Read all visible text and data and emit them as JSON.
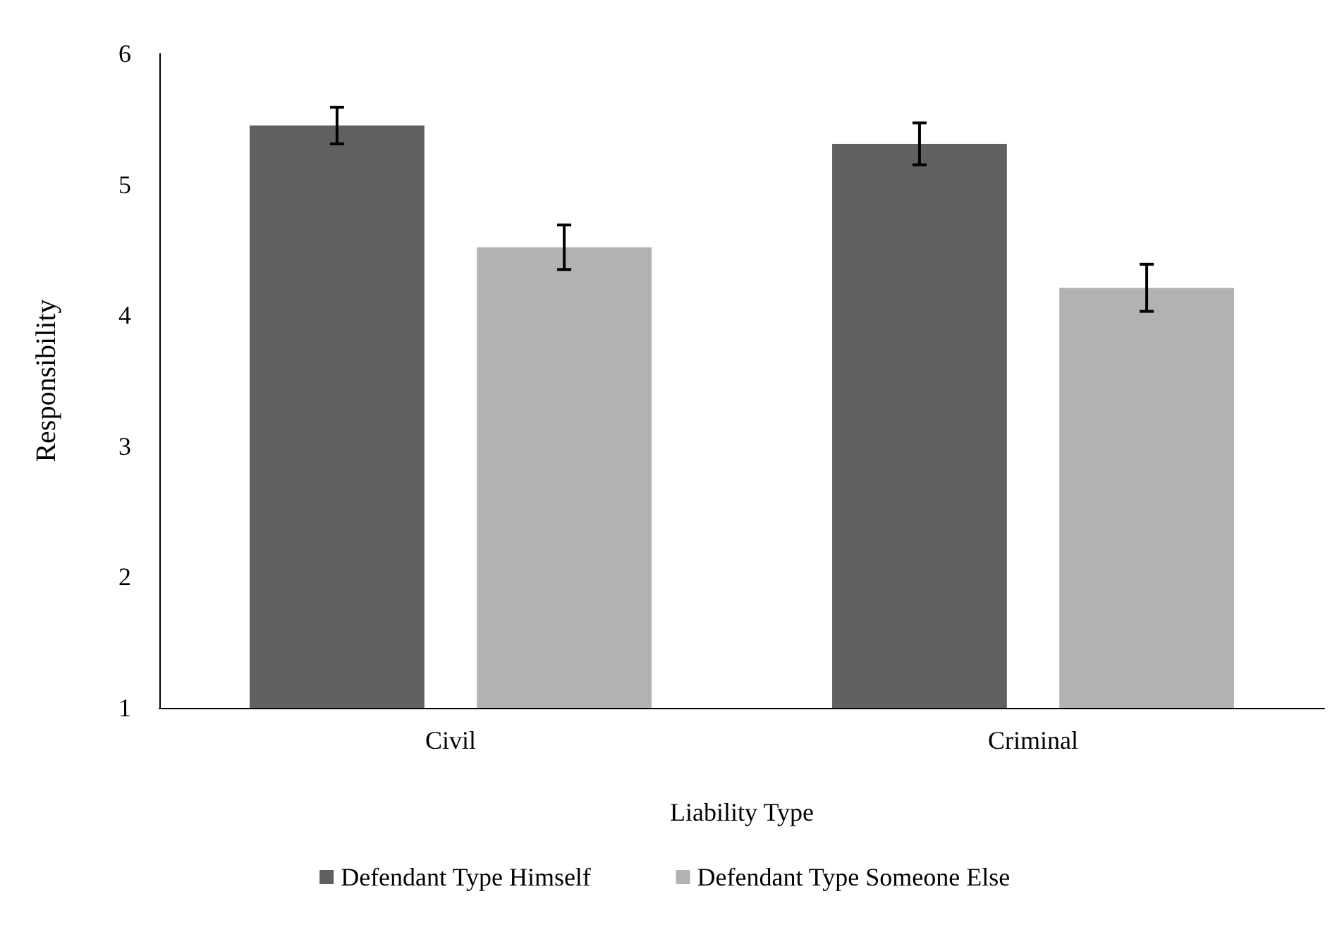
{
  "chart_data": {
    "type": "bar",
    "xlabel": "Liability Type",
    "ylabel": "Responsibility",
    "categories": [
      "Civil",
      "Criminal"
    ],
    "series": [
      {
        "name": "Defendant Type Himself",
        "color": "#606060",
        "values": [
          5.45,
          5.31
        ],
        "errors": [
          0.14,
          0.16
        ]
      },
      {
        "name": "Defendant Type Someone Else",
        "color": "#b2b2b2",
        "values": [
          4.52,
          4.21
        ],
        "errors": [
          0.17,
          0.18
        ]
      }
    ],
    "ylim": [
      1,
      6
    ],
    "yticks": [
      1,
      2,
      3,
      4,
      5,
      6
    ],
    "grid": false,
    "legend": "bottom"
  }
}
